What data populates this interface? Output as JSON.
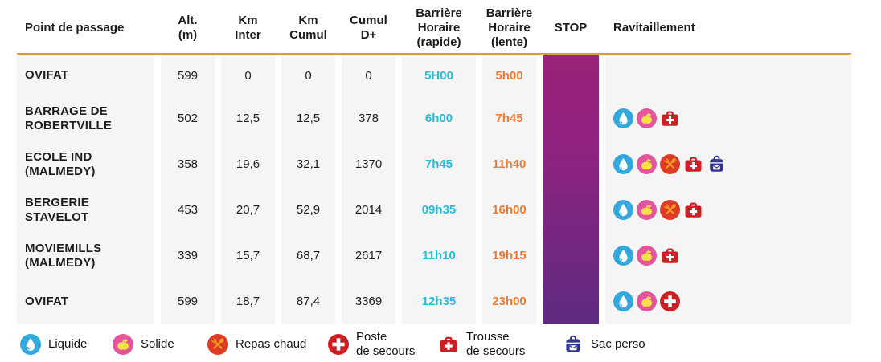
{
  "chart_data": {
    "type": "table",
    "title": "",
    "columns": [
      {
        "id": "name",
        "label": "Point de passage",
        "align": "left"
      },
      {
        "id": "alt",
        "label": "Alt.\n(m)",
        "align": "center"
      },
      {
        "id": "km_inter",
        "label": "Km\nInter",
        "align": "center"
      },
      {
        "id": "km_cumul",
        "label": "Km\nCumul",
        "align": "center"
      },
      {
        "id": "cumul_dplus",
        "label": "Cumul\nD+",
        "align": "center"
      },
      {
        "id": "barriere_rapide",
        "label": "Barrière\nHoraire\n(rapide)",
        "align": "center"
      },
      {
        "id": "barriere_lente",
        "label": "Barrière\nHoraire\n(lente)",
        "align": "center"
      },
      {
        "id": "stop",
        "label": "STOP",
        "align": "center"
      },
      {
        "id": "ravitaillement",
        "label": "Ravitaillement",
        "align": "left"
      }
    ],
    "rows": [
      {
        "name": "OVIFAT",
        "alt": "599",
        "km_inter": "0",
        "km_cumul": "0",
        "cumul_dplus": "0",
        "barriere_rapide": "5H00",
        "barriere_lente": "5h00",
        "ravitaillement": []
      },
      {
        "name": "BARRAGE DE ROBERTVILLE",
        "alt": "502",
        "km_inter": "12,5",
        "km_cumul": "12,5",
        "cumul_dplus": "378",
        "barriere_rapide": "6h00",
        "barriere_lente": "7h45",
        "ravitaillement": [
          "liquide",
          "solide",
          "trousse_secours"
        ]
      },
      {
        "name": "ECOLE IND (MALMEDY)",
        "alt": "358",
        "km_inter": "19,6",
        "km_cumul": "32,1",
        "cumul_dplus": "1370",
        "barriere_rapide": "7h45",
        "barriere_lente": "11h40",
        "ravitaillement": [
          "liquide",
          "solide",
          "repas_chaud",
          "trousse_secours",
          "sac_perso"
        ]
      },
      {
        "name": "BERGERIE STAVELOT",
        "alt": "453",
        "km_inter": "20,7",
        "km_cumul": "52,9",
        "cumul_dplus": "2014",
        "barriere_rapide": "09h35",
        "barriere_lente": "16h00",
        "ravitaillement": [
          "liquide",
          "solide",
          "repas_chaud",
          "trousse_secours"
        ]
      },
      {
        "name": "MOVIEMILLS (MALMEDY)",
        "alt": "339",
        "km_inter": "15,7",
        "km_cumul": "68,7",
        "cumul_dplus": "2617",
        "barriere_rapide": "11h10",
        "barriere_lente": "19h15",
        "ravitaillement": [
          "liquide",
          "solide",
          "trousse_secours"
        ]
      },
      {
        "name": "OVIFAT",
        "alt": "599",
        "km_inter": "18,7",
        "km_cumul": "87,4",
        "cumul_dplus": "3369",
        "barriere_rapide": "12h35",
        "barriere_lente": "23h00",
        "ravitaillement": [
          "liquide",
          "solide",
          "poste_secours"
        ]
      }
    ],
    "legend": [
      {
        "icon": "liquide",
        "label": "Liquide"
      },
      {
        "icon": "solide",
        "label": "Solide"
      },
      {
        "icon": "repas_chaud",
        "label": "Repas chaud"
      },
      {
        "icon": "poste_secours",
        "label": "Poste\nde secours"
      },
      {
        "icon": "trousse_secours",
        "label": "Trousse\nde secours"
      },
      {
        "icon": "sac_perso",
        "label": "Sac perso"
      }
    ]
  },
  "colors": {
    "gold_rule": "#cda33f",
    "cell_background": "#f5f5f5",
    "stop_gradient_top": "#9a2279",
    "stop_gradient_bottom": "#5e2b80",
    "time_fast": "#29bcd4",
    "time_slow": "#ef7b30",
    "text": "#1d1d1b",
    "icon_liquide_bg": "#32a8dd",
    "icon_solide_bg": "#e4549f",
    "icon_solide_fruit": "#f3e443",
    "icon_repas_bg": "#de3b27",
    "icon_repas_utensils": "#f6a41f",
    "icon_medical_red": "#cb2026",
    "icon_sac_indigo": "#34358d",
    "icon_white": "#ffffff"
  }
}
